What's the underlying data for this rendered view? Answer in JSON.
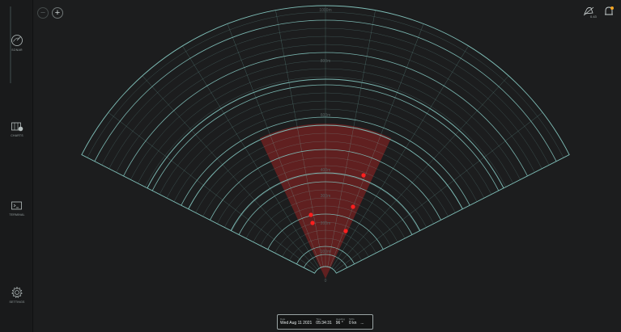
{
  "sidebar": {
    "items": [
      {
        "name": "sidebar-item-sonar",
        "label": "Sonar"
      },
      {
        "name": "sidebar-item-charts",
        "label": "Charts"
      },
      {
        "name": "sidebar-item-terminal",
        "label": "Terminal"
      },
      {
        "name": "sidebar-item-settings",
        "label": "Settings"
      }
    ]
  },
  "zoom": {
    "out": "−",
    "in": "+"
  },
  "top_right": {
    "alert_count": "0.43"
  },
  "sonar": {
    "range_labels": [
      "1000m",
      "800m",
      "600m",
      "400m",
      "300m",
      "200m",
      "100m"
    ],
    "origin_label": "0",
    "colors": {
      "grid": "#7fbfb8",
      "sector": "#8b2222",
      "target": "#ff1f1f"
    },
    "targets": [
      {
        "id": "target-1"
      },
      {
        "id": "target-2"
      },
      {
        "id": "target-3"
      },
      {
        "id": "target-4"
      },
      {
        "id": "target-5"
      }
    ]
  },
  "status": {
    "date_label": "Date",
    "date_value": "Wed Aug 11 2021",
    "time_label": "Time",
    "time_value": "05:34:31",
    "heading_label": "Heading",
    "heading_value": "96 °",
    "sog_label": "SOG",
    "sog_value": "0 kn",
    "extra_value": "..."
  }
}
